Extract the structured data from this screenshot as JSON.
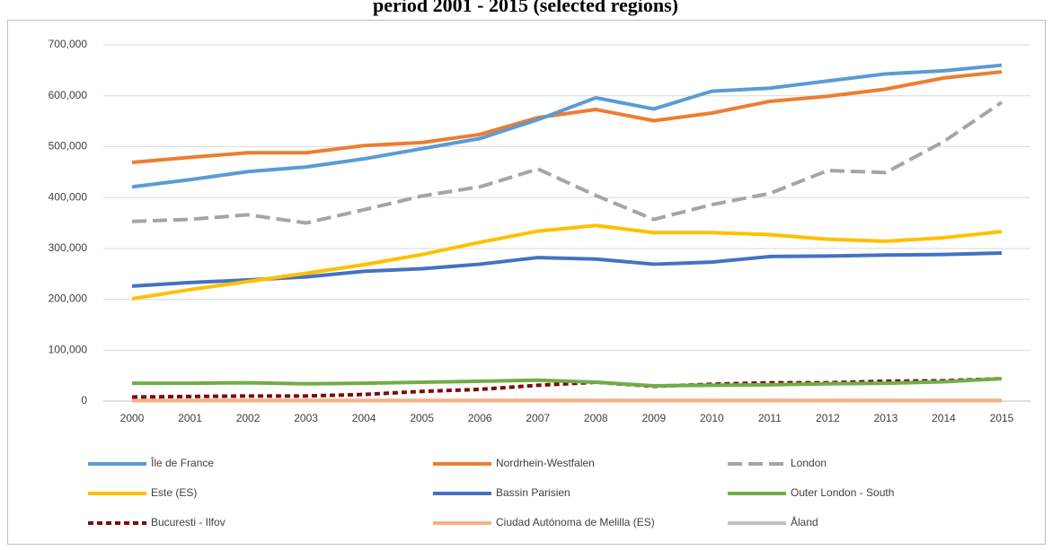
{
  "chart_data": {
    "type": "line",
    "title": "period 2001 - 2015 (selected regions)",
    "categories": [
      "2000",
      "2001",
      "2002",
      "2003",
      "2004",
      "2005",
      "2006",
      "2007",
      "2008",
      "2009",
      "2010",
      "2011",
      "2012",
      "2013",
      "2014",
      "2015"
    ],
    "ylim": [
      0,
      700000
    ],
    "yticks": [
      {
        "value": 0,
        "label": "0"
      },
      {
        "value": 100000,
        "label": "100,000"
      },
      {
        "value": 200000,
        "label": "200,000"
      },
      {
        "value": 300000,
        "label": "300,000"
      },
      {
        "value": 400000,
        "label": "400,000"
      },
      {
        "value": 500000,
        "label": "500,000"
      },
      {
        "value": 600000,
        "label": "600,000"
      },
      {
        "value": 700000,
        "label": "700,000"
      }
    ],
    "grid": true,
    "legend": "bottom",
    "series": [
      {
        "name": "Île de France",
        "color": "#5b9bd5",
        "style": "solid",
        "values": [
          421000,
          435000,
          451000,
          460000,
          476000,
          496000,
          516000,
          553000,
          596000,
          574000,
          609000,
          615000,
          629000,
          643000,
          649000,
          660000
        ]
      },
      {
        "name": "Nordrhein-Westfalen",
        "color": "#ed7d31",
        "style": "solid",
        "values": [
          469000,
          479000,
          488000,
          488000,
          502000,
          508000,
          524000,
          557000,
          573000,
          551000,
          566000,
          589000,
          599000,
          613000,
          635000,
          647000
        ]
      },
      {
        "name": "London",
        "color": "#a5a5a5",
        "style": "dashed",
        "values": [
          353000,
          357000,
          366000,
          350000,
          376000,
          403000,
          421000,
          456000,
          404000,
          357000,
          386000,
          408000,
          453000,
          449000,
          510000,
          587000
        ]
      },
      {
        "name": "Este (ES)",
        "color": "#ffc000",
        "style": "solid",
        "values": [
          201000,
          219000,
          235000,
          251000,
          268000,
          288000,
          312000,
          334000,
          345000,
          331000,
          331000,
          327000,
          318000,
          314000,
          321000,
          333000
        ]
      },
      {
        "name": "Bassin Parisien",
        "color": "#4472c4",
        "style": "solid",
        "values": [
          226000,
          233000,
          238000,
          244000,
          255000,
          260000,
          269000,
          282000,
          279000,
          269000,
          273000,
          284000,
          285000,
          287000,
          288000,
          291000
        ]
      },
      {
        "name": "Outer London - South",
        "color": "#70ad47",
        "style": "solid",
        "values": [
          35000,
          35000,
          36000,
          34000,
          35000,
          37000,
          39000,
          41000,
          37000,
          30000,
          31000,
          32000,
          34000,
          35000,
          38000,
          44000
        ]
      },
      {
        "name": "Bucuresti - Ilfov",
        "color": "#7b0c0c",
        "style": "dotted",
        "values": [
          8000,
          9000,
          10000,
          10000,
          13000,
          19000,
          23000,
          31000,
          37000,
          29000,
          33000,
          36000,
          36000,
          39000,
          40000,
          44000
        ]
      },
      {
        "name": "Ciudad Autónoma de Melilla (ES)",
        "color": "#f4b183",
        "style": "solid",
        "values": [
          1000,
          1000,
          1000,
          1000,
          1000,
          1000,
          1000,
          1000,
          1000,
          1000,
          1000,
          1000,
          1000,
          1000,
          1000,
          1000
        ]
      },
      {
        "name": "Åland",
        "color": "#c0c0c0",
        "style": "solid",
        "values": [
          1000,
          1000,
          1000,
          1000,
          1000,
          1000,
          1000,
          1000,
          1000,
          1000,
          1000,
          1000,
          1000,
          1000,
          1000,
          1000
        ]
      }
    ]
  }
}
